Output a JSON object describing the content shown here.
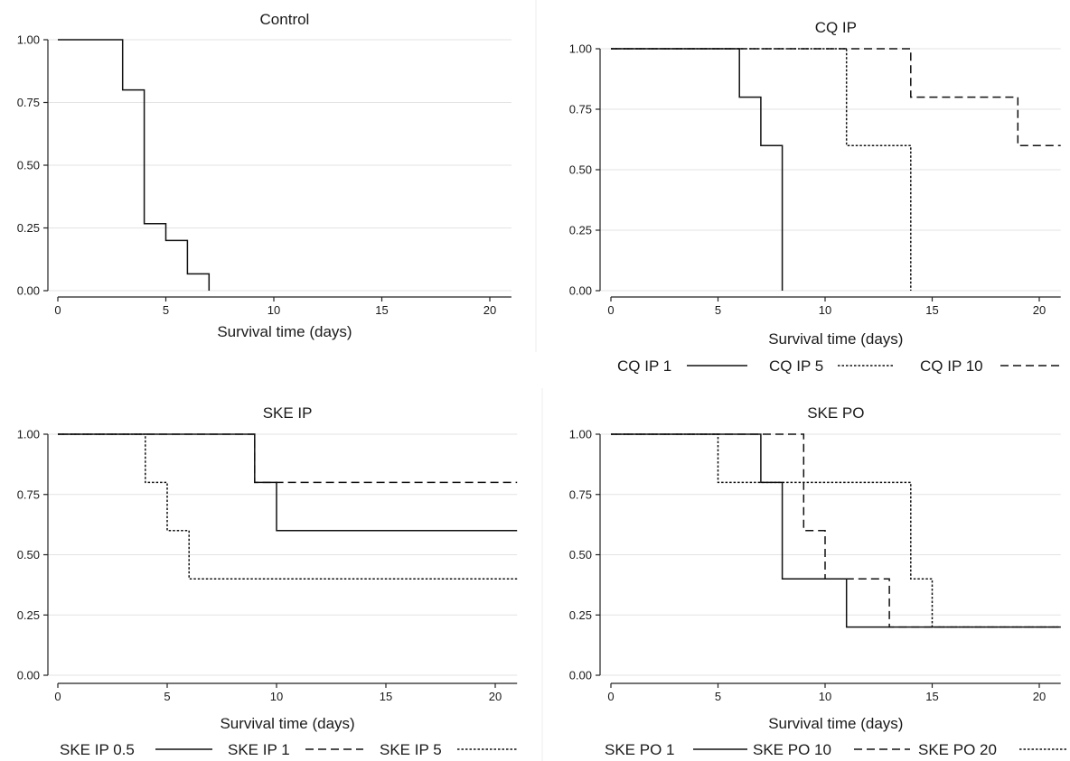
{
  "chart_data": [
    {
      "type": "line",
      "title": "Control",
      "xlabel": "Survival time (days)",
      "ylabel": "",
      "xlim": [
        0,
        21
      ],
      "ylim": [
        0,
        1
      ],
      "xticks": [
        0,
        5,
        10,
        15,
        20
      ],
      "yticks": [
        0,
        0.25,
        0.5,
        0.75,
        1
      ],
      "ytick_labels": [
        "0.00",
        "0.25",
        "0.50",
        "0.75",
        "1.00"
      ],
      "grid": true,
      "step": true,
      "series": [
        {
          "name": "",
          "style": "solid",
          "x": [
            0,
            3,
            4,
            5,
            6,
            7
          ],
          "y": [
            1.0,
            0.8,
            0.267,
            0.2,
            0.067,
            0.0
          ],
          "end": 7
        }
      ],
      "legend": []
    },
    {
      "type": "line",
      "title": "CQ IP",
      "xlabel": "Survival time (days)",
      "ylabel": "",
      "xlim": [
        0,
        21
      ],
      "ylim": [
        0,
        1
      ],
      "xticks": [
        0,
        5,
        10,
        15,
        20
      ],
      "yticks": [
        0,
        0.25,
        0.5,
        0.75,
        1
      ],
      "ytick_labels": [
        "0.00",
        "0.25",
        "0.50",
        "0.75",
        "1.00"
      ],
      "grid": true,
      "step": true,
      "series": [
        {
          "name": "CQ IP 1",
          "style": "solid",
          "x": [
            0,
            6,
            7,
            8
          ],
          "y": [
            1.0,
            0.8,
            0.6,
            0.0
          ],
          "end": 8
        },
        {
          "name": "CQ IP 5",
          "style": "dotted",
          "x": [
            0,
            11,
            14
          ],
          "y": [
            1.0,
            0.6,
            0.0
          ],
          "end": 14
        },
        {
          "name": "CQ IP 10",
          "style": "dashed",
          "x": [
            0,
            14,
            19
          ],
          "y": [
            1.0,
            0.8,
            0.6
          ],
          "end": 21
        }
      ],
      "legend": [
        {
          "label": "CQ IP 1",
          "style": "solid"
        },
        {
          "label": "CQ IP 5",
          "style": "dotted"
        },
        {
          "label": "CQ IP 10",
          "style": "dashed"
        }
      ]
    },
    {
      "type": "line",
      "title": "SKE IP",
      "xlabel": "Survival time (days)",
      "ylabel": "",
      "xlim": [
        0,
        21
      ],
      "ylim": [
        0,
        1
      ],
      "xticks": [
        0,
        5,
        10,
        15,
        20
      ],
      "yticks": [
        0,
        0.25,
        0.5,
        0.75,
        1
      ],
      "ytick_labels": [
        "0.00",
        "0.25",
        "0.50",
        "0.75",
        "1.00"
      ],
      "grid": true,
      "step": true,
      "series": [
        {
          "name": "SKE IP 0.5",
          "style": "solid",
          "x": [
            0,
            9,
            10
          ],
          "y": [
            1.0,
            0.8,
            0.6
          ],
          "end": 21
        },
        {
          "name": "SKE IP 1",
          "style": "dashed",
          "x": [
            0,
            9
          ],
          "y": [
            1.0,
            0.8
          ],
          "end": 21
        },
        {
          "name": "SKE IP 5",
          "style": "dotted",
          "x": [
            0,
            4,
            5,
            6
          ],
          "y": [
            1.0,
            0.8,
            0.6,
            0.4
          ],
          "end": 21
        }
      ],
      "legend": [
        {
          "label": "SKE IP 0.5",
          "style": "solid"
        },
        {
          "label": "SKE IP 1",
          "style": "dashed"
        },
        {
          "label": "SKE IP 5",
          "style": "dotted"
        }
      ]
    },
    {
      "type": "line",
      "title": "SKE PO",
      "xlabel": "Survival time (days)",
      "ylabel": "",
      "xlim": [
        0,
        21
      ],
      "ylim": [
        0,
        1
      ],
      "xticks": [
        0,
        5,
        10,
        15,
        20
      ],
      "yticks": [
        0,
        0.25,
        0.5,
        0.75,
        1
      ],
      "ytick_labels": [
        "0.00",
        "0.25",
        "0.50",
        "0.75",
        "1.00"
      ],
      "grid": true,
      "step": true,
      "series": [
        {
          "name": "SKE PO 1",
          "style": "solid",
          "x": [
            0,
            7,
            8,
            11
          ],
          "y": [
            1.0,
            0.8,
            0.4,
            0.2
          ],
          "end": 21
        },
        {
          "name": "SKE PO 10",
          "style": "dashed",
          "x": [
            0,
            9,
            10,
            13
          ],
          "y": [
            1.0,
            0.6,
            0.4,
            0.2
          ],
          "end": 21
        },
        {
          "name": "SKE PO 20",
          "style": "dotted",
          "x": [
            0,
            5,
            14,
            15
          ],
          "y": [
            1.0,
            0.8,
            0.4,
            0.2
          ],
          "end": 21
        }
      ],
      "legend": [
        {
          "label": "SKE PO 1",
          "style": "solid"
        },
        {
          "label": "SKE PO 10",
          "style": "dashed"
        },
        {
          "label": "SKE PO 20",
          "style": "dotted"
        }
      ]
    }
  ]
}
